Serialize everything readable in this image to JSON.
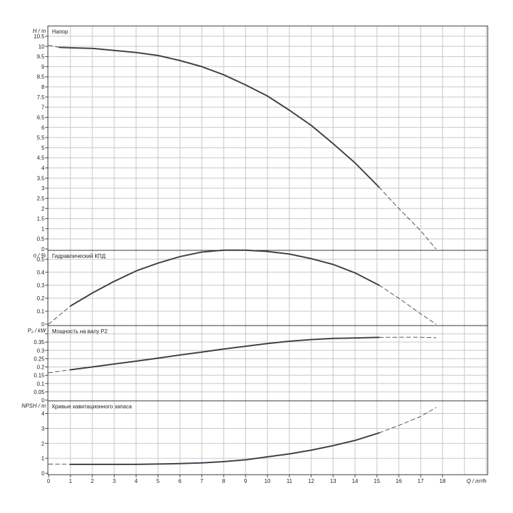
{
  "chart_data": [
    {
      "type": "line",
      "title": "Напор",
      "ylabel": "H / m",
      "xlabel": "",
      "xlim": [
        0,
        20
      ],
      "ylim": [
        0,
        10.5
      ],
      "yticks": [
        "0",
        "0.5",
        "1",
        "1.5",
        "2",
        "2.5",
        "3",
        "3.5",
        "4",
        "4.5",
        "5",
        "5.5",
        "6",
        "6.5",
        "7",
        "7.5",
        "8",
        "8.5",
        "9",
        "9.5",
        "10",
        "10.5"
      ],
      "grid": true,
      "series": [
        {
          "style": "solid",
          "color": "#3a3f4a",
          "x": [
            0.5,
            1,
            2,
            3,
            4,
            5,
            6,
            7,
            8,
            9,
            10,
            11,
            12,
            13,
            14,
            15.1
          ],
          "y": [
            9.95,
            9.93,
            9.9,
            9.8,
            9.7,
            9.55,
            9.3,
            9.0,
            8.6,
            8.1,
            7.55,
            6.85,
            6.1,
            5.2,
            4.25,
            3.05
          ]
        },
        {
          "style": "dashed",
          "color": "#3a3f4a",
          "x": [
            0,
            0.5
          ],
          "y": [
            10.05,
            9.95
          ]
        },
        {
          "style": "dashed",
          "color": "#3a3f4a",
          "x": [
            15.1,
            16,
            17,
            17.7
          ],
          "y": [
            3.05,
            2.0,
            0.9,
            0
          ]
        }
      ]
    },
    {
      "type": "line",
      "title": "Гидравлический КПД",
      "ylabel": "η / %",
      "xlabel": "",
      "xlim": [
        0,
        20
      ],
      "ylim": [
        0,
        0.6
      ],
      "yticks": [
        "0",
        "0.1",
        "0.2",
        "0.3",
        "0.4",
        "0.5"
      ],
      "grid": true,
      "series": [
        {
          "style": "solid",
          "color": "#3a3f4a",
          "x": [
            1,
            2,
            3,
            4,
            5,
            6,
            7,
            8,
            9,
            10,
            11,
            12,
            13,
            14,
            15.1
          ],
          "y": [
            0.14,
            0.24,
            0.33,
            0.41,
            0.47,
            0.52,
            0.555,
            0.57,
            0.57,
            0.56,
            0.54,
            0.505,
            0.46,
            0.395,
            0.3
          ]
        },
        {
          "style": "dashed",
          "color": "#3a3f4a",
          "x": [
            0,
            0.5,
            1
          ],
          "y": [
            0,
            0.07,
            0.14
          ]
        },
        {
          "style": "dashed",
          "color": "#3a3f4a",
          "x": [
            15.1,
            16,
            17,
            17.7
          ],
          "y": [
            0.3,
            0.2,
            0.08,
            0
          ]
        }
      ]
    },
    {
      "type": "line",
      "title": "Мощность на валу P2",
      "ylabel": "P₂ / kW",
      "xlabel": "",
      "xlim": [
        0,
        20
      ],
      "ylim": [
        0,
        0.4
      ],
      "yticks": [
        "0",
        "0.05",
        "0.1",
        "0.15",
        "0.2",
        "0.25",
        "0.3",
        "0.35"
      ],
      "grid": true,
      "series": [
        {
          "style": "solid",
          "color": "#3a3f4a",
          "x": [
            1,
            2,
            3,
            4,
            5,
            6,
            7,
            8,
            9,
            10,
            11,
            12,
            13,
            14,
            15.1
          ],
          "y": [
            0.183,
            0.2,
            0.218,
            0.235,
            0.253,
            0.272,
            0.29,
            0.308,
            0.325,
            0.341,
            0.355,
            0.365,
            0.372,
            0.375,
            0.378
          ]
        },
        {
          "style": "dashed",
          "color": "#3a3f4a",
          "x": [
            0,
            1
          ],
          "y": [
            0.165,
            0.183
          ]
        },
        {
          "style": "dashed",
          "color": "#3a3f4a",
          "x": [
            15.1,
            16,
            17,
            17.7
          ],
          "y": [
            0.378,
            0.379,
            0.379,
            0.376
          ]
        }
      ]
    },
    {
      "type": "line",
      "title": "Кривые кавитационного запаса",
      "ylabel": "NPSH / m",
      "xlabel": "Q / m³/h",
      "xlim": [
        0,
        20
      ],
      "ylim": [
        0,
        4.8
      ],
      "yticks": [
        "0",
        "1",
        "2",
        "3",
        "4"
      ],
      "xticks": [
        "0",
        "1",
        "2",
        "3",
        "4",
        "5",
        "6",
        "7",
        "8",
        "9",
        "10",
        "11",
        "12",
        "13",
        "14",
        "15",
        "16",
        "17",
        "18"
      ],
      "grid": true,
      "series": [
        {
          "style": "solid",
          "color": "#3a3f4a",
          "x": [
            1,
            2,
            3,
            4,
            5,
            6,
            7,
            8,
            9,
            10,
            11,
            12,
            13,
            14,
            15.1
          ],
          "y": [
            0.6,
            0.6,
            0.6,
            0.6,
            0.62,
            0.65,
            0.7,
            0.78,
            0.9,
            1.1,
            1.3,
            1.55,
            1.85,
            2.2,
            2.7
          ]
        },
        {
          "style": "dashed",
          "color": "#3a3f4a",
          "x": [
            0,
            1
          ],
          "y": [
            0.62,
            0.6
          ]
        },
        {
          "style": "dashed",
          "color": "#3a3f4a",
          "x": [
            15.1,
            16,
            17,
            17.7
          ],
          "y": [
            2.7,
            3.2,
            3.8,
            4.4
          ]
        }
      ]
    }
  ]
}
